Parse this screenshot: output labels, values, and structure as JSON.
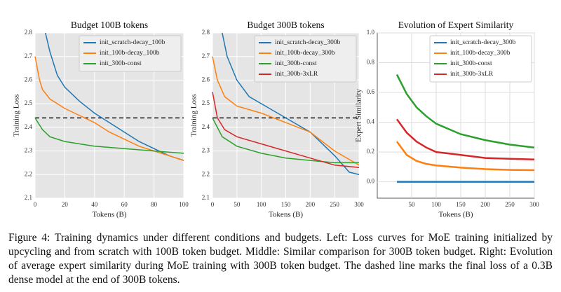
{
  "chart_data": [
    {
      "type": "line",
      "title": "Budget 100B tokens",
      "x_label": "Tokens (B)",
      "y_label": "Training Loss",
      "xlim": [
        0,
        100
      ],
      "xticks": [
        0,
        20,
        40,
        60,
        80,
        100
      ],
      "ylim": [
        2.1,
        2.8
      ],
      "yticks": [
        2.1,
        2.2,
        2.3,
        2.4,
        2.5,
        2.6,
        2.7,
        2.8
      ],
      "grid": true,
      "background": "#e5e5e5",
      "grid_color": "#ffffff",
      "legend": "upper right",
      "reference_line": 2.44,
      "series": [
        {
          "name": "init_scratch-decay_100b",
          "color": "#1f77b4",
          "x": [
            7,
            10,
            15,
            20,
            30,
            40,
            50,
            60,
            70,
            80,
            90,
            100
          ],
          "values": [
            2.8,
            2.72,
            2.62,
            2.57,
            2.51,
            2.46,
            2.42,
            2.38,
            2.34,
            2.31,
            2.28,
            2.26
          ]
        },
        {
          "name": "init_100b-decay_100b",
          "color": "#ff7f0e",
          "x": [
            0,
            3,
            5,
            10,
            20,
            30,
            40,
            50,
            60,
            70,
            80,
            90,
            100
          ],
          "values": [
            2.7,
            2.6,
            2.56,
            2.52,
            2.48,
            2.45,
            2.42,
            2.38,
            2.35,
            2.32,
            2.3,
            2.28,
            2.26
          ]
        },
        {
          "name": "init_300b-const",
          "color": "#2ca02c",
          "x": [
            0,
            5,
            10,
            20,
            30,
            40,
            60,
            80,
            100
          ],
          "values": [
            2.44,
            2.39,
            2.36,
            2.34,
            2.33,
            2.32,
            2.31,
            2.3,
            2.29
          ]
        }
      ]
    },
    {
      "type": "line",
      "title": "Budget 300B tokens",
      "x_label": "Tokens (B)",
      "y_label": "Training Loss",
      "xlim": [
        0,
        300
      ],
      "xticks": [
        0,
        50,
        100,
        150,
        200,
        250,
        300
      ],
      "ylim": [
        2.1,
        2.8
      ],
      "yticks": [
        2.1,
        2.2,
        2.3,
        2.4,
        2.5,
        2.6,
        2.7,
        2.8
      ],
      "grid": true,
      "background": "#e5e5e5",
      "grid_color": "#ffffff",
      "legend": "upper right",
      "reference_line": 2.44,
      "series": [
        {
          "name": "init_scratch-decay_300b",
          "color": "#1f77b4",
          "x": [
            20,
            30,
            50,
            75,
            100,
            150,
            200,
            250,
            280,
            300
          ],
          "values": [
            2.8,
            2.7,
            2.6,
            2.53,
            2.5,
            2.44,
            2.38,
            2.28,
            2.21,
            2.2
          ]
        },
        {
          "name": "init_100b-decay_300b",
          "color": "#ff7f0e",
          "x": [
            0,
            10,
            25,
            50,
            100,
            150,
            200,
            250,
            300
          ],
          "values": [
            2.7,
            2.6,
            2.53,
            2.49,
            2.46,
            2.42,
            2.38,
            2.3,
            2.24
          ]
        },
        {
          "name": "init_300b-const",
          "color": "#2ca02c",
          "x": [
            0,
            20,
            50,
            100,
            150,
            200,
            250,
            300
          ],
          "values": [
            2.44,
            2.36,
            2.32,
            2.29,
            2.27,
            2.26,
            2.25,
            2.25
          ]
        },
        {
          "name": "init_300b-3xLR",
          "color": "#d62728",
          "x": [
            0,
            10,
            25,
            50,
            100,
            150,
            200,
            250,
            300
          ],
          "values": [
            2.55,
            2.44,
            2.39,
            2.36,
            2.33,
            2.3,
            2.27,
            2.24,
            2.23
          ]
        }
      ]
    },
    {
      "type": "line",
      "title": "Evolution of Expert Similarity",
      "x_label": "Tokens (B)",
      "y_label": "Expert Similarity",
      "xlim": [
        -20,
        300
      ],
      "xticks": [
        50,
        100,
        150,
        200,
        250,
        300
      ],
      "ylim": [
        -0.11,
        1.0
      ],
      "yticks": [
        {
          "value": 0,
          "label": "0.0"
        },
        0.2,
        0.4,
        0.6,
        0.8,
        {
          "value": 1,
          "label": "1.0"
        }
      ],
      "grid": true,
      "background": "#ffffff",
      "grid_color": "#dddddd",
      "legend": "upper right",
      "series": [
        {
          "name": "init_scratch-decay_300b",
          "color": "#1f77b4",
          "x": [
            20,
            300
          ],
          "values": [
            0,
            0
          ]
        },
        {
          "name": "init_100b-decay_300b",
          "color": "#ff7f0e",
          "x": [
            20,
            40,
            60,
            80,
            100,
            150,
            200,
            250,
            300
          ],
          "values": [
            0.27,
            0.18,
            0.14,
            0.12,
            0.11,
            0.095,
            0.085,
            0.08,
            0.078
          ]
        },
        {
          "name": "init_300b-const",
          "color": "#2ca02c",
          "x": [
            20,
            40,
            60,
            80,
            100,
            150,
            200,
            250,
            300
          ],
          "values": [
            0.72,
            0.59,
            0.5,
            0.44,
            0.39,
            0.32,
            0.28,
            0.25,
            0.23
          ]
        },
        {
          "name": "init_300b-3xLR",
          "color": "#d62728",
          "x": [
            20,
            40,
            60,
            80,
            100,
            150,
            200,
            250,
            300
          ],
          "values": [
            0.42,
            0.33,
            0.27,
            0.23,
            0.2,
            0.18,
            0.16,
            0.155,
            0.15
          ]
        }
      ]
    }
  ],
  "caption": "Figure 4: Training dynamics under different conditions and budgets. Left: Loss curves for MoE training initialized by upcycling and from scratch with 100B token budget. Middle: Similar comparison for 300B token budget. Right: Evolution of average expert similarity during MoE training with 300B token budget. The dashed line marks the final loss of a 0.3B dense model at the end of 300B tokens."
}
